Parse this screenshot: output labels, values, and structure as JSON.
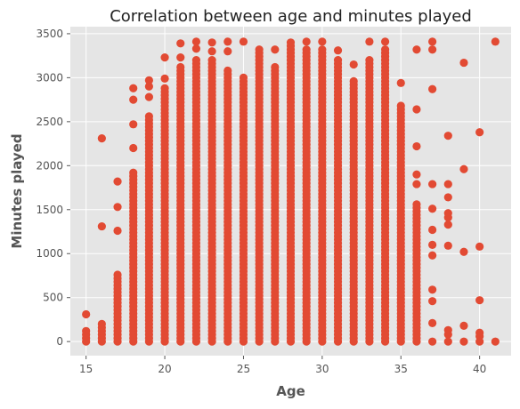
{
  "chart_data": {
    "type": "scatter",
    "title": "Correlation between age and minutes played",
    "xlabel": "Age",
    "ylabel": "Minutes played",
    "xlim": [
      14,
      42
    ],
    "ylim": [
      -160,
      3580
    ],
    "xticks": [
      15,
      20,
      25,
      30,
      35,
      40
    ],
    "yticks": [
      0,
      500,
      1000,
      1500,
      2000,
      2500,
      3000,
      3500
    ],
    "grid": true,
    "legend": "none",
    "colors": {
      "point": "#E24A33",
      "plot_background": "#E5E5E5",
      "grid": "#FFFFFF",
      "figure_background": "#FFFFFF",
      "text": "#555555"
    },
    "columns": [
      {
        "age": 15,
        "extras": [
          310
        ],
        "max": 130
      },
      {
        "age": 16,
        "extras": [
          2310,
          1310
        ],
        "max": 230
      },
      {
        "age": 17,
        "extras": [
          1820,
          1530,
          1260
        ],
        "max": 760
      },
      {
        "age": 18,
        "extras": [
          2880,
          2750,
          2470,
          2200
        ],
        "max": 1940
      },
      {
        "age": 19,
        "extras": [
          2970,
          2900,
          2780
        ],
        "max": 2590
      },
      {
        "age": 20,
        "extras": [
          3230,
          2990
        ],
        "max": 2880
      },
      {
        "age": 21,
        "extras": [
          3390,
          3230
        ],
        "max": 3120
      },
      {
        "age": 22,
        "extras": [
          3410,
          3330
        ],
        "max": 3230
      },
      {
        "age": 23,
        "extras": [
          3400,
          3300
        ],
        "max": 3230
      },
      {
        "age": 24,
        "extras": [
          3410,
          3300
        ],
        "max": 3080
      },
      {
        "age": 25,
        "extras": [
          3410
        ],
        "max": 3020
      },
      {
        "age": 26,
        "extras": [],
        "max": 3350
      },
      {
        "age": 27,
        "extras": [
          3320
        ],
        "max": 3130
      },
      {
        "age": 28,
        "extras": [],
        "max": 3410
      },
      {
        "age": 29,
        "extras": [
          3410
        ],
        "max": 3330
      },
      {
        "age": 30,
        "extras": [
          3410
        ],
        "max": 3330
      },
      {
        "age": 31,
        "extras": [
          3310
        ],
        "max": 3230
      },
      {
        "age": 32,
        "extras": [
          3150
        ],
        "max": 2970
      },
      {
        "age": 33,
        "extras": [
          3410
        ],
        "max": 3230
      },
      {
        "age": 34,
        "extras": [
          3410
        ],
        "max": 3320
      },
      {
        "age": 35,
        "extras": [
          2940
        ],
        "max": 2690
      },
      {
        "age": 36,
        "extras": [
          3320,
          2640,
          2220,
          1900,
          1790
        ],
        "max": 1590
      },
      {
        "age": 37,
        "extras": [
          3410,
          3320,
          2870,
          1790,
          1510,
          1270,
          1100,
          980,
          590,
          460,
          210
        ],
        "max": 0
      },
      {
        "age": 38,
        "extras": [
          2340,
          1790,
          1640,
          1460,
          1410,
          1330,
          1090,
          130,
          80
        ],
        "max": 0
      },
      {
        "age": 39,
        "extras": [
          3170,
          1960,
          1020,
          180
        ],
        "max": 0
      },
      {
        "age": 40,
        "extras": [
          2380,
          1080,
          470,
          100,
          60
        ],
        "max": 0
      },
      {
        "age": 41,
        "extras": [
          3410
        ],
        "max": 0
      }
    ]
  }
}
